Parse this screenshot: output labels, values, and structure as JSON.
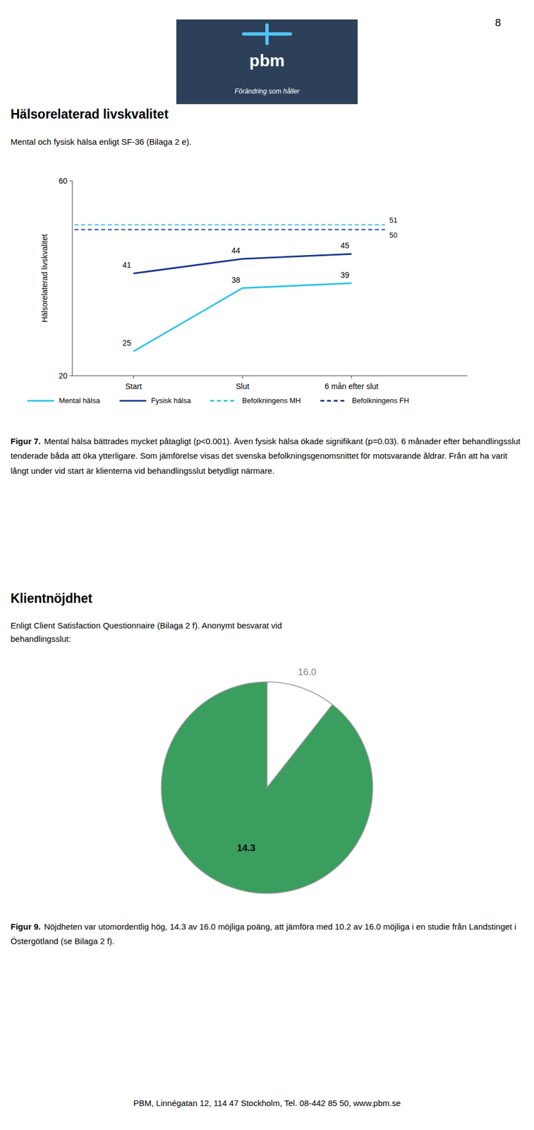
{
  "page_number": "8",
  "logo": {
    "text": "pbm",
    "subtitle": "Förändring som håller"
  },
  "sections": [
    {
      "title": "Hälsorelaterad livskvalitet",
      "subtitle": [
        "Mental och fysisk hälsa enligt SF-36 (Bilaga 2 e)."
      ],
      "caption": {
        "label": "Figur 7.",
        "text": "Mental hälsa bättrades mycket påtagligt (p<0.001). Även fysisk hälsa ökade signifikant (p=0.03). 6 månader efter behandlingsslut tenderade båda att öka ytterligare. Som jämförelse visas det svenska befolkningsgenomsnittet för motsvarande åldrar. Från att ha varit långt under vid start är klienterna vid behandlingsslut betydligt närmare."
      }
    },
    {
      "title": "Klientnöjdhet",
      "subtitle": [
        "Enligt Client Satisfaction Questionnaire (Bilaga 2 f). Anonymt besvarat vid",
        "behandlingsslut:"
      ],
      "caption": {
        "label": "Figur 9.",
        "text": "Nöjdheten var utomordentlig hög, 14.3 av 16.0 möjliga poäng, att jämföra med 10.2 av 16.0 möjliga i en studie från Landstinget i Östergötland (se Bilaga 2 f)."
      }
    }
  ],
  "footer": "PBM, Linnégatan 12, 114 47 Stockholm, Tel. 08-442 85 50, www.pbm.se",
  "chart_data": [
    {
      "type": "line",
      "ylabel": "Hälsorelaterad livskvalitet",
      "categories": [
        "Start",
        "Slut",
        "6 mån efter slut"
      ],
      "series": [
        {
          "name": "Mental hälsa",
          "color": "#29c5e6",
          "line_style": "solid",
          "values": [
            25,
            38,
            39
          ]
        },
        {
          "name": "Fysisk hälsa",
          "color": "#1a3a8c",
          "line_style": "solid",
          "values": [
            41,
            44,
            45
          ]
        }
      ],
      "reference_lines": [
        {
          "name": "Befolkningens MH",
          "color": "#29c5e6",
          "line_style": "dashed",
          "value": 51
        },
        {
          "name": "Befolkningens FH",
          "color": "#1a3a8c",
          "line_style": "dashed",
          "value": 50
        }
      ],
      "ylim": [
        20,
        60
      ],
      "yticks": [
        20,
        60
      ],
      "grid": false,
      "legend": "bottom",
      "data_labels": true
    },
    {
      "type": "pie",
      "values": [
        1.7,
        14.3
      ],
      "colors": [
        "#ffffff",
        "#3a9e5f"
      ],
      "value_labels": [
        null,
        "14.3"
      ],
      "total": {
        "value": 16.0,
        "label": "16.0"
      }
    }
  ]
}
